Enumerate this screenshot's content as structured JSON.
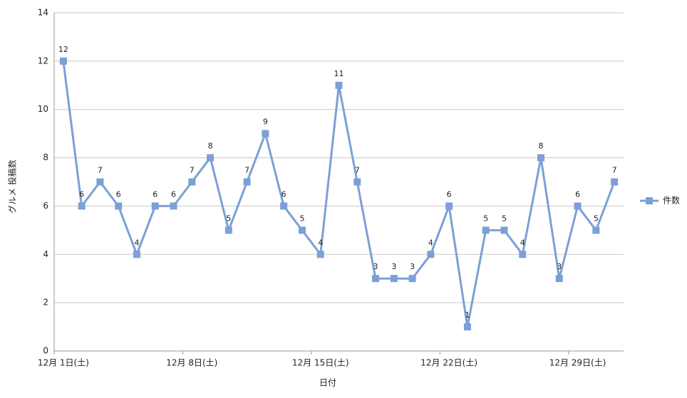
{
  "chart_data": {
    "type": "line",
    "x_label": "日付",
    "y_label": "グルメ 投稿数",
    "categories": [
      "12月 1日(土)",
      null,
      null,
      null,
      null,
      null,
      null,
      "12月 8日(土)",
      null,
      null,
      null,
      null,
      null,
      null,
      "12月 15日(土)",
      null,
      null,
      null,
      null,
      null,
      null,
      "12月 22日(土)",
      null,
      null,
      null,
      null,
      null,
      null,
      "12月 29日(土)",
      null,
      null
    ],
    "series": [
      {
        "name": "件数",
        "color": "#7ba0d6",
        "values": [
          12,
          6,
          7,
          6,
          4,
          6,
          6,
          7,
          8,
          5,
          7,
          9,
          6,
          5,
          4,
          11,
          7,
          3,
          3,
          3,
          4,
          6,
          1,
          5,
          5,
          4,
          8,
          3,
          6,
          5,
          7
        ]
      }
    ],
    "ylim": [
      0,
      14
    ],
    "yticks": [
      0,
      2,
      4,
      6,
      8,
      10,
      12,
      14
    ],
    "grid": true,
    "legend": "right"
  }
}
